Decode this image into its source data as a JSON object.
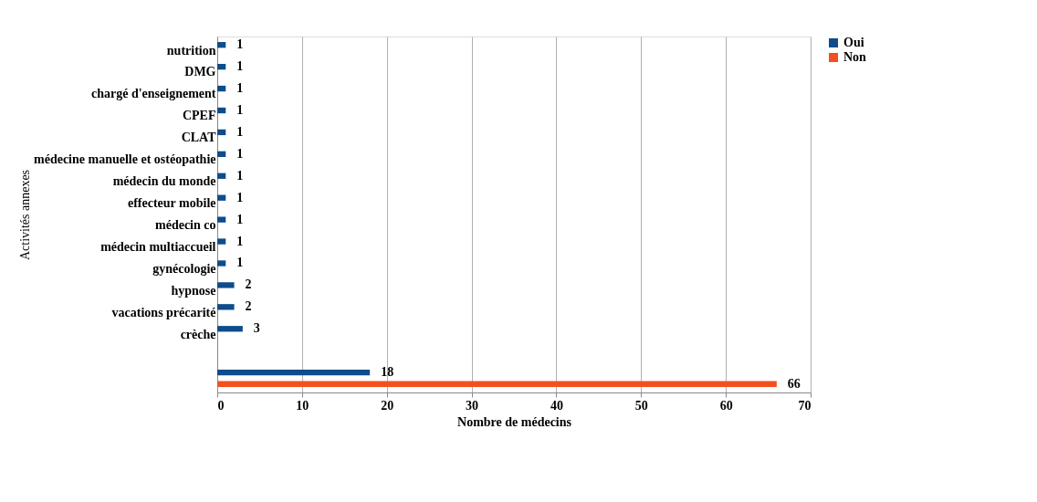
{
  "chart_data": {
    "type": "bar",
    "orientation": "horizontal",
    "xlabel": "Nombre de médecins",
    "ylabel": "Activités annexes",
    "categories": [
      "nutrition",
      "DMG",
      "chargé d'enseignement",
      "CPEF",
      "CLAT",
      "médecine manuelle et ostéopathie",
      "médecin du monde",
      "effecteur mobile",
      "médecin co",
      "médecin multiaccueil",
      "gynécologie",
      "hypnose",
      "vacations précarité",
      "crèche",
      null,
      null
    ],
    "series": [
      {
        "name": "Oui",
        "color": "#0f4c8a",
        "values": [
          1,
          1,
          1,
          1,
          1,
          1,
          1,
          1,
          1,
          1,
          1,
          2,
          2,
          3,
          null,
          18
        ]
      },
      {
        "name": "Non",
        "color": "#f2501f",
        "values": [
          null,
          null,
          null,
          null,
          null,
          null,
          null,
          null,
          null,
          null,
          null,
          null,
          null,
          null,
          null,
          66
        ]
      }
    ],
    "xlim": [
      0,
      70
    ],
    "xticks": [
      0,
      10,
      20,
      30,
      40,
      50,
      60,
      70
    ],
    "grid": "x",
    "legend": "right",
    "data_labels": true
  }
}
